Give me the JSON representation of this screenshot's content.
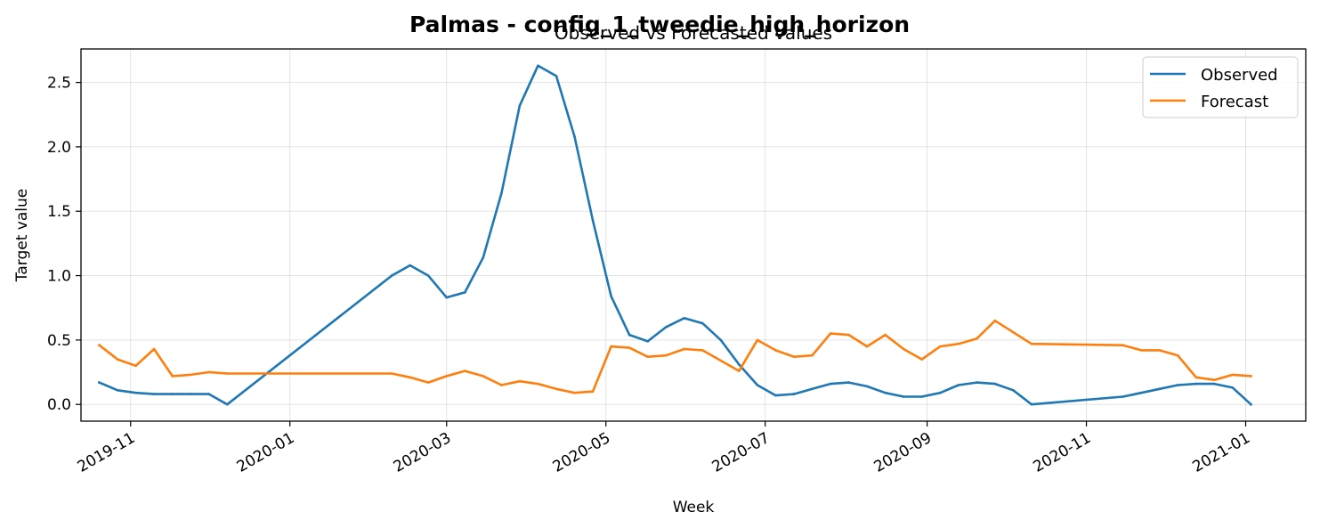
{
  "chart_data": {
    "type": "line",
    "suptitle": "Palmas - config_1_tweedie_high_horizon",
    "title": "Observed vs Forecasted values",
    "xlabel": "Week",
    "ylabel": "Target value",
    "xlim": [
      "2019-10-13",
      "2021-01-24"
    ],
    "ylim": [
      -0.13,
      2.76
    ],
    "grid": true,
    "legend_position": "top-right",
    "x_ticks": [
      {
        "date": "2019-11-01",
        "label": "2019-11"
      },
      {
        "date": "2020-01-01",
        "label": "2020-01"
      },
      {
        "date": "2020-03-01",
        "label": "2020-03"
      },
      {
        "date": "2020-05-01",
        "label": "2020-05"
      },
      {
        "date": "2020-07-01",
        "label": "2020-07"
      },
      {
        "date": "2020-09-01",
        "label": "2020-09"
      },
      {
        "date": "2020-11-01",
        "label": "2020-11"
      },
      {
        "date": "2021-01-01",
        "label": "2021-01"
      }
    ],
    "y_ticks": [
      {
        "value": 0.0,
        "label": "0.0"
      },
      {
        "value": 0.5,
        "label": "0.5"
      },
      {
        "value": 1.0,
        "label": "1.0"
      },
      {
        "value": 1.5,
        "label": "1.5"
      },
      {
        "value": 2.0,
        "label": "2.0"
      },
      {
        "value": 2.5,
        "label": "2.5"
      }
    ],
    "series": [
      {
        "name": "Observed",
        "color": "#1f77b4",
        "points": [
          [
            "2019-10-20",
            0.17
          ],
          [
            "2019-10-27",
            0.11
          ],
          [
            "2019-11-03",
            0.09
          ],
          [
            "2019-11-10",
            0.08
          ],
          [
            "2019-11-17",
            0.08
          ],
          [
            "2019-11-24",
            0.08
          ],
          [
            "2019-12-01",
            0.08
          ],
          [
            "2019-12-08",
            0.0
          ],
          [
            "2020-02-09",
            1.0
          ],
          [
            "2020-02-16",
            1.08
          ],
          [
            "2020-02-23",
            1.0
          ],
          [
            "2020-03-01",
            0.83
          ],
          [
            "2020-03-08",
            0.87
          ],
          [
            "2020-03-15",
            1.14
          ],
          [
            "2020-03-22",
            1.64
          ],
          [
            "2020-03-29",
            2.32
          ],
          [
            "2020-04-05",
            2.63
          ],
          [
            "2020-04-12",
            2.55
          ],
          [
            "2020-04-19",
            2.08
          ],
          [
            "2020-04-26",
            1.43
          ],
          [
            "2020-05-03",
            0.84
          ],
          [
            "2020-05-10",
            0.54
          ],
          [
            "2020-05-17",
            0.49
          ],
          [
            "2020-05-24",
            0.6
          ],
          [
            "2020-05-31",
            0.67
          ],
          [
            "2020-06-07",
            0.63
          ],
          [
            "2020-06-14",
            0.5
          ],
          [
            "2020-06-21",
            0.31
          ],
          [
            "2020-06-28",
            0.15
          ],
          [
            "2020-07-05",
            0.07
          ],
          [
            "2020-07-12",
            0.08
          ],
          [
            "2020-07-19",
            0.12
          ],
          [
            "2020-07-26",
            0.16
          ],
          [
            "2020-08-02",
            0.17
          ],
          [
            "2020-08-09",
            0.14
          ],
          [
            "2020-08-16",
            0.09
          ],
          [
            "2020-08-23",
            0.06
          ],
          [
            "2020-08-30",
            0.06
          ],
          [
            "2020-09-06",
            0.09
          ],
          [
            "2020-09-13",
            0.15
          ],
          [
            "2020-09-20",
            0.17
          ],
          [
            "2020-09-27",
            0.16
          ],
          [
            "2020-10-04",
            0.11
          ],
          [
            "2020-10-11",
            0.0
          ],
          [
            "2020-11-15",
            0.06
          ],
          [
            "2020-11-22",
            0.09
          ],
          [
            "2020-11-29",
            0.12
          ],
          [
            "2020-12-06",
            0.15
          ],
          [
            "2020-12-13",
            0.16
          ],
          [
            "2020-12-20",
            0.16
          ],
          [
            "2020-12-27",
            0.13
          ],
          [
            "2021-01-03",
            0.0
          ]
        ]
      },
      {
        "name": "Forecast",
        "color": "#ff7f0e",
        "points": [
          [
            "2019-10-20",
            0.46
          ],
          [
            "2019-10-27",
            0.35
          ],
          [
            "2019-11-03",
            0.3
          ],
          [
            "2019-11-10",
            0.43
          ],
          [
            "2019-11-17",
            0.22
          ],
          [
            "2019-11-24",
            0.23
          ],
          [
            "2019-12-01",
            0.25
          ],
          [
            "2019-12-08",
            0.24
          ],
          [
            "2020-02-09",
            0.24
          ],
          [
            "2020-02-16",
            0.21
          ],
          [
            "2020-02-23",
            0.17
          ],
          [
            "2020-03-01",
            0.22
          ],
          [
            "2020-03-08",
            0.26
          ],
          [
            "2020-03-15",
            0.22
          ],
          [
            "2020-03-22",
            0.15
          ],
          [
            "2020-03-29",
            0.18
          ],
          [
            "2020-04-05",
            0.16
          ],
          [
            "2020-04-12",
            0.12
          ],
          [
            "2020-04-19",
            0.09
          ],
          [
            "2020-04-26",
            0.1
          ],
          [
            "2020-05-03",
            0.45
          ],
          [
            "2020-05-10",
            0.44
          ],
          [
            "2020-05-17",
            0.37
          ],
          [
            "2020-05-24",
            0.38
          ],
          [
            "2020-05-31",
            0.43
          ],
          [
            "2020-06-07",
            0.42
          ],
          [
            "2020-06-14",
            0.34
          ],
          [
            "2020-06-21",
            0.26
          ],
          [
            "2020-06-28",
            0.5
          ],
          [
            "2020-07-05",
            0.42
          ],
          [
            "2020-07-12",
            0.37
          ],
          [
            "2020-07-19",
            0.38
          ],
          [
            "2020-07-26",
            0.55
          ],
          [
            "2020-08-02",
            0.54
          ],
          [
            "2020-08-09",
            0.45
          ],
          [
            "2020-08-16",
            0.54
          ],
          [
            "2020-08-23",
            0.43
          ],
          [
            "2020-08-30",
            0.35
          ],
          [
            "2020-09-06",
            0.45
          ],
          [
            "2020-09-13",
            0.47
          ],
          [
            "2020-09-20",
            0.51
          ],
          [
            "2020-09-27",
            0.65
          ],
          [
            "2020-10-04",
            0.56
          ],
          [
            "2020-10-11",
            0.47
          ],
          [
            "2020-11-15",
            0.46
          ],
          [
            "2020-11-22",
            0.42
          ],
          [
            "2020-11-29",
            0.42
          ],
          [
            "2020-12-06",
            0.38
          ],
          [
            "2020-12-13",
            0.21
          ],
          [
            "2020-12-20",
            0.19
          ],
          [
            "2020-12-27",
            0.23
          ],
          [
            "2021-01-03",
            0.22
          ]
        ]
      }
    ]
  }
}
